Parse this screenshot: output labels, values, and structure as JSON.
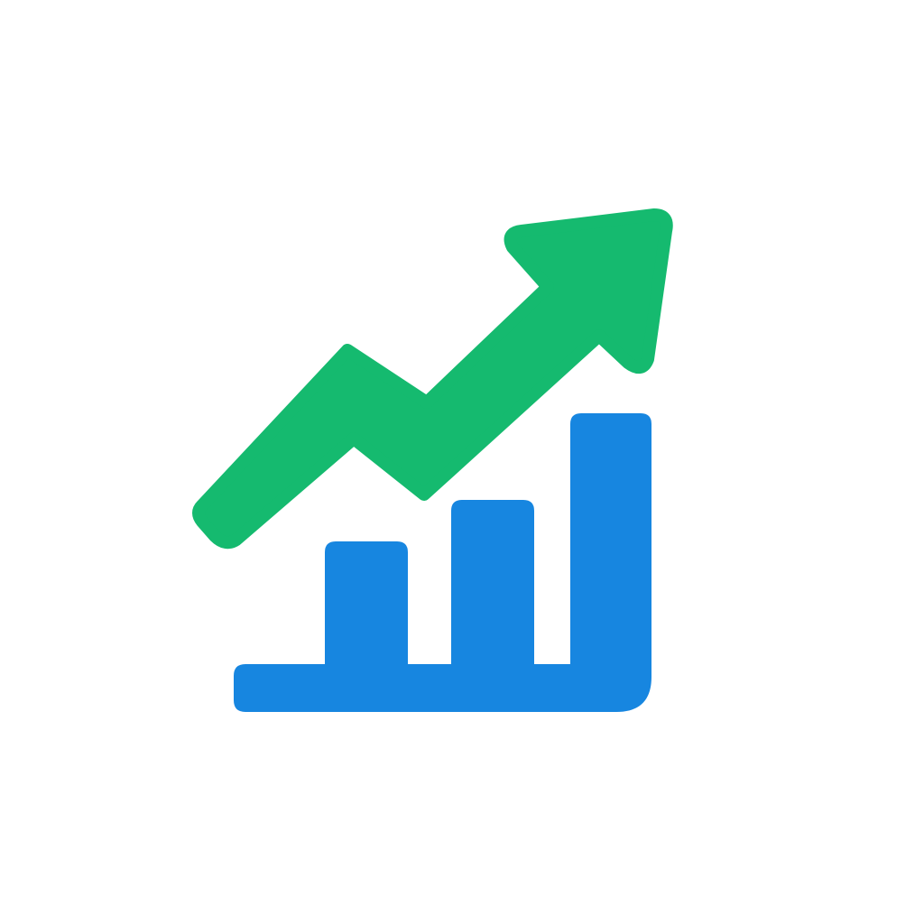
{
  "icon": {
    "name": "growth-chart-icon",
    "description_colors": {
      "arrow": "#15BA6F",
      "bars": "#1786E0",
      "background": "#FFFFFF"
    },
    "parts": [
      "trend-arrow-icon",
      "bar-chart-icon"
    ]
  }
}
